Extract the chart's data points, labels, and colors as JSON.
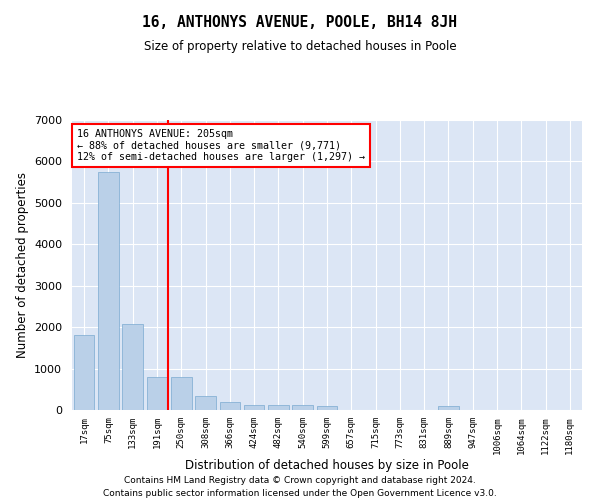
{
  "title": "16, ANTHONYS AVENUE, POOLE, BH14 8JH",
  "subtitle": "Size of property relative to detached houses in Poole",
  "xlabel": "Distribution of detached houses by size in Poole",
  "ylabel": "Number of detached properties",
  "footer_line1": "Contains HM Land Registry data © Crown copyright and database right 2024.",
  "footer_line2": "Contains public sector information licensed under the Open Government Licence v3.0.",
  "annotation_line1": "16 ANTHONYS AVENUE: 205sqm",
  "annotation_line2": "← 88% of detached houses are smaller (9,771)",
  "annotation_line3": "12% of semi-detached houses are larger (1,297) →",
  "bar_color": "#bad0e8",
  "bar_edge_color": "#7aaad0",
  "vline_color": "red",
  "vline_x_idx": 3.45,
  "categories": [
    "17sqm",
    "75sqm",
    "133sqm",
    "191sqm",
    "250sqm",
    "308sqm",
    "366sqm",
    "424sqm",
    "482sqm",
    "540sqm",
    "599sqm",
    "657sqm",
    "715sqm",
    "773sqm",
    "831sqm",
    "889sqm",
    "947sqm",
    "1006sqm",
    "1064sqm",
    "1122sqm",
    "1180sqm"
  ],
  "values": [
    1800,
    5750,
    2080,
    800,
    800,
    350,
    200,
    130,
    120,
    120,
    90,
    0,
    0,
    0,
    0,
    100,
    0,
    0,
    0,
    0,
    0
  ],
  "ylim": [
    0,
    7000
  ],
  "yticks": [
    0,
    1000,
    2000,
    3000,
    4000,
    5000,
    6000,
    7000
  ],
  "background_color": "#dce6f5",
  "grid_color": "#ffffff",
  "annotation_box_color": "white",
  "annotation_box_edge": "red"
}
